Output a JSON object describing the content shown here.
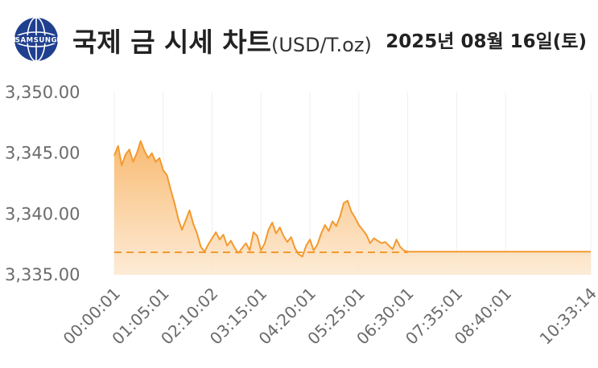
{
  "header": {
    "logo_text": "SAMSUNG",
    "title": "국제 금 시세 차트",
    "unit": "(USD/T.oz)",
    "date": "2025년 08월 16일(토)"
  },
  "colors": {
    "line": "#f39a2f",
    "fill_top": "#f8b76a",
    "fill_bottom": "#fde9d2",
    "reference": "#f39a2f",
    "logo": "#1f3f8f"
  },
  "chart_data": {
    "type": "area",
    "title": "",
    "xlabel": "",
    "ylabel": "",
    "ylim": [
      3335,
      3350
    ],
    "y_ticks": [
      "3,335.00",
      "3,340.00",
      "3,345.00",
      "3,350.00"
    ],
    "y_tick_values": [
      3335,
      3340,
      3345,
      3350
    ],
    "x_ticks": [
      "00:00:01",
      "01:05:01",
      "02:10:02",
      "03:15:01",
      "04:20:01",
      "05:25:01",
      "06:30:01",
      "07:35:01",
      "08:40:01",
      "10:33:14"
    ],
    "reference_line": 3336.85,
    "grid": "vertical",
    "series": [
      {
        "x": [
          "00:00:01",
          "00:05:00",
          "00:10:00",
          "00:15:00",
          "00:20:00",
          "00:25:00",
          "00:30:00",
          "00:35:00",
          "00:40:00",
          "00:45:00",
          "00:50:00",
          "00:55:00",
          "01:00:00",
          "01:05:00",
          "01:10:00",
          "01:15:00",
          "01:20:00",
          "01:25:00",
          "01:30:00",
          "01:35:00",
          "01:40:00",
          "01:45:00",
          "01:50:00",
          "01:55:00",
          "02:00:00",
          "02:05:00",
          "02:10:00",
          "02:15:00",
          "02:20:00",
          "02:25:00",
          "02:30:00",
          "02:35:00",
          "02:40:00",
          "02:45:00",
          "02:50:00",
          "02:55:00",
          "03:00:00",
          "03:05:00",
          "03:10:00",
          "03:15:00",
          "03:20:00",
          "03:25:00",
          "03:30:00",
          "03:35:00",
          "03:40:00",
          "03:45:00",
          "03:50:00",
          "03:55:00",
          "04:00:00",
          "04:05:00",
          "04:10:00",
          "04:15:00",
          "04:20:00",
          "04:25:00",
          "04:30:00",
          "04:35:00",
          "04:40:00",
          "04:45:00",
          "04:50:00",
          "04:55:00",
          "05:00:00",
          "05:05:00",
          "05:10:00",
          "05:15:00",
          "05:20:00",
          "05:25:00",
          "05:30:00",
          "05:35:00",
          "05:40:00",
          "05:45:00",
          "05:50:00",
          "05:55:00",
          "06:00:00",
          "06:05:00",
          "06:10:00",
          "06:15:00",
          "06:20:00",
          "06:25:00",
          "06:30:00",
          "07:00:00",
          "07:35:01",
          "08:00:00",
          "08:40:01",
          "09:30:00",
          "10:33:14"
        ],
        "values": [
          3344.8,
          3345.6,
          3344.0,
          3344.9,
          3345.3,
          3344.3,
          3345.0,
          3346.0,
          3345.2,
          3344.6,
          3345.0,
          3344.3,
          3344.6,
          3343.6,
          3343.2,
          3342.0,
          3340.9,
          3339.6,
          3338.7,
          3339.5,
          3340.3,
          3339.2,
          3338.4,
          3337.3,
          3336.9,
          3337.5,
          3338.0,
          3338.5,
          3337.9,
          3338.3,
          3337.4,
          3337.8,
          3337.2,
          3336.8,
          3337.2,
          3337.6,
          3337.0,
          3338.5,
          3338.2,
          3337.0,
          3337.6,
          3338.7,
          3339.3,
          3338.4,
          3338.9,
          3338.2,
          3337.7,
          3338.1,
          3337.2,
          3336.7,
          3336.5,
          3337.4,
          3337.9,
          3337.0,
          3337.5,
          3338.4,
          3339.1,
          3338.6,
          3339.4,
          3339.0,
          3339.8,
          3340.9,
          3341.1,
          3340.2,
          3339.7,
          3339.1,
          3338.7,
          3338.3,
          3337.6,
          3338.0,
          3337.8,
          3337.6,
          3337.7,
          3337.4,
          3337.1,
          3337.9,
          3337.3,
          3337.0,
          3336.9,
          3336.9,
          3336.9,
          3336.9,
          3336.9,
          3336.9,
          3336.9
        ]
      }
    ]
  }
}
